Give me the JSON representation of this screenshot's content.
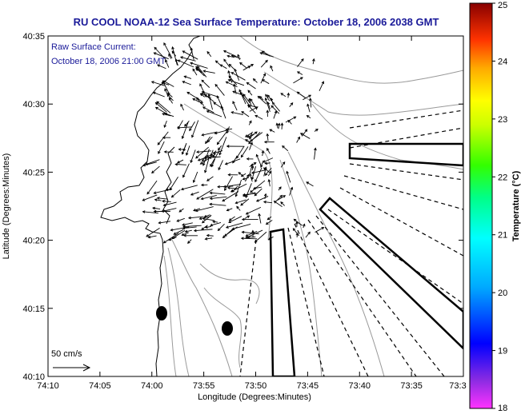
{
  "title": "RU COOL  NOAA-12  Sea Surface Temperature:  October 18, 2006 2038 GMT",
  "current_label": {
    "line1": "Raw Surface Current:",
    "line2": "October 18, 2006 21:00 GMT"
  },
  "axes": {
    "x_label": "Longitude (Degrees:Minutes)",
    "y_label": "Latitude (Degrees:Minutes)",
    "x_ticks": [
      "74:10",
      "74:05",
      "74:00",
      "73:55",
      "73:50",
      "73:45",
      "73:40",
      "73:35",
      "73:3"
    ],
    "y_ticks": [
      "40:35",
      "40:30",
      "40:25",
      "40:20",
      "40:15",
      "40:10"
    ]
  },
  "scale_label": "50 cm/s",
  "colorbar": {
    "label": "Temperature (°C)",
    "min": 18,
    "max": 25,
    "ticks": [
      "25",
      "24",
      "23",
      "22",
      "21",
      "20",
      "19",
      "18"
    ]
  },
  "colors": {
    "title": "#1a1a99",
    "annotation": "#1a1a99",
    "axis_text": "#000000",
    "land": "#ffffff",
    "contour": "#999999"
  }
}
